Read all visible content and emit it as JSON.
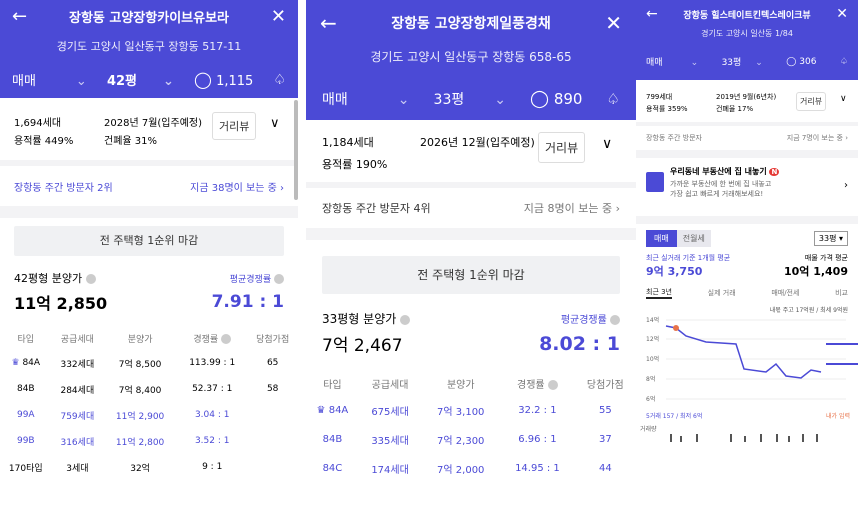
{
  "p1": {
    "title": "장항동 고양장항카이브유보라",
    "address": "경기도 고양시 일산동구 장항동 517-11",
    "trade": "매매",
    "size": "42평",
    "comments": "1,115",
    "households": "1,694세대",
    "date": "2028년 7월(입주예정)",
    "floor_ratio": "용적률 449%",
    "coverage": "건폐율 31%",
    "street_view": "거리뷰",
    "visitors": "장항동 주간 방문자 2위",
    "now_viewing": "지금 38명이 보는 중",
    "rank_btn": "전 주택형 1순위 마감",
    "price_label": "42평형 분양가",
    "price": "11억 2,850",
    "comp_label": "평균경쟁률",
    "comp": "7.91 : 1",
    "headers": [
      "타입",
      "공급세대",
      "분양가",
      "경쟁률",
      "당첨가점"
    ],
    "rows": [
      {
        "type": "84A",
        "supply": "332세대",
        "price": "7억 8,500",
        "rate": "113.99 : 1",
        "score": "65"
      },
      {
        "type": "84B",
        "supply": "284세대",
        "price": "7억 8,400",
        "rate": "52.37 : 1",
        "score": "58"
      },
      {
        "type": "99A",
        "supply": "759세대",
        "price": "11억 2,900",
        "rate": "3.04 : 1",
        "score": ""
      },
      {
        "type": "99B",
        "supply": "316세대",
        "price": "11억 2,800",
        "rate": "3.52 : 1",
        "score": ""
      },
      {
        "type": "170타입",
        "supply": "3세대",
        "price": "32억",
        "rate": "9 : 1",
        "score": ""
      }
    ]
  },
  "p2": {
    "title": "장항동 고양장항제일풍경채",
    "address": "경기도 고양시 일산동구 장항동 658-65",
    "trade": "매매",
    "size": "33평",
    "comments": "890",
    "households": "1,184세대",
    "date": "2026년 12월(입주예정)",
    "floor_ratio": "용적률 190%",
    "street_view": "거리뷰",
    "visitors": "장항동 주간 방문자 4위",
    "now_viewing": "지금 8명이 보는 중",
    "rank_btn": "전 주택형 1순위 마감",
    "price_label": "33평형 분양가",
    "price": "7억 2,467",
    "comp_label": "평균경쟁률",
    "comp": "8.02 : 1",
    "headers": [
      "타입",
      "공급세대",
      "분양가",
      "경쟁률",
      "당첨가점"
    ],
    "rows": [
      {
        "type": "84A",
        "supply": "675세대",
        "price": "7억 3,100",
        "rate": "32.2 : 1",
        "score": "55"
      },
      {
        "type": "84B",
        "supply": "335세대",
        "price": "7억 2,300",
        "rate": "6.96 : 1",
        "score": "37"
      },
      {
        "type": "84C",
        "supply": "174세대",
        "price": "7억 2,000",
        "rate": "14.95 : 1",
        "score": "44"
      }
    ]
  },
  "p3": {
    "title": "장항동 힐스테이트킨텍스레이크뷰",
    "address": "경기도 고양시 일산동 1/84",
    "trade": "매매",
    "size": "33평",
    "comments": "306",
    "households": "799세대",
    "date": "2019년 9월(6년차)",
    "floor_ratio": "용적률 359%",
    "coverage": "건폐율 17%",
    "street_view": "거리뷰",
    "visitors": "장항동 주간 방문자",
    "now_viewing": "지금 7명이 보는 중",
    "promo_title": "우리동네 부동산에 집 내놓기",
    "promo_badge": "N",
    "promo_text1": "가까운 부동산에 한 번에 집 내놓고",
    "promo_text2": "가장 쉽고 빠르게 거래해보세요!",
    "tab_sale": "매매",
    "tab_rent": "전월세",
    "size_select": "33평",
    "recent_label": "최근 실거래 기준 1개월 평균",
    "recent_price": "9억 3,750",
    "ask_label": "매물 가격 평균",
    "ask_price": "10억 1,409",
    "periods": [
      "최근 3년",
      "실제 거래",
      "매매/전세",
      "비교"
    ],
    "legend": "내몫 주고 17억원 / 최세 9억원",
    "y_ticks": [
      "14억",
      "12억",
      "10억",
      "8억",
      "6억"
    ],
    "bottom_left": "5거래 157 / 최저 6억",
    "bottom_right": "내가 입력",
    "vol_label": "거래량"
  }
}
